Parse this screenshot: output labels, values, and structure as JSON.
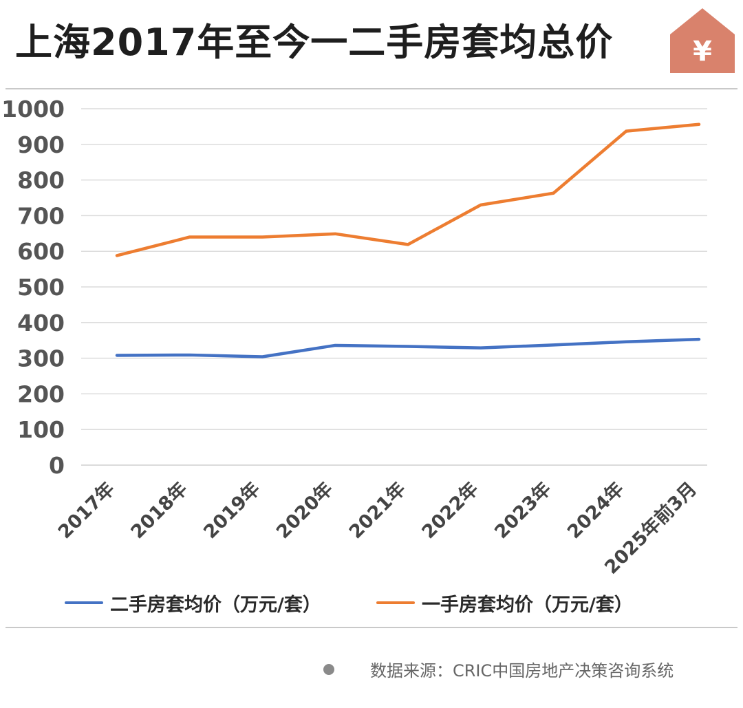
{
  "header": {
    "title": "上海2017年至今一二手房套均总价",
    "icon_symbol": "¥",
    "icon": "house-yen-icon"
  },
  "colors": {
    "second_hand": "#4472C4",
    "first_hand": "#ED7D31",
    "house": "#D9826C",
    "grid": "#dcdcdc"
  },
  "chart_data": {
    "type": "line",
    "title": "上海2017年至今一二手房套均总价",
    "categories": [
      "2017年",
      "2018年",
      "2019年",
      "2020年",
      "2021年",
      "2022年",
      "2023年",
      "2024年",
      "2025年前3月"
    ],
    "series": [
      {
        "name": "二手房套均价（万元/套）",
        "color": "#4472C4",
        "values": [
          308,
          309,
          304,
          336,
          333,
          329,
          337,
          346,
          353
        ]
      },
      {
        "name": "一手房套均价（万元/套）",
        "color": "#ED7D31",
        "values": [
          588,
          640,
          640,
          649,
          619,
          730,
          763,
          937,
          956
        ]
      }
    ],
    "yticks": [
      0,
      100,
      200,
      300,
      400,
      500,
      600,
      700,
      800,
      900,
      1000
    ],
    "ylim": [
      0,
      1000
    ],
    "grid": true,
    "legend": "bottom"
  },
  "footer": {
    "source": "数据来源：CRIC中国房地产决策咨询系统"
  }
}
